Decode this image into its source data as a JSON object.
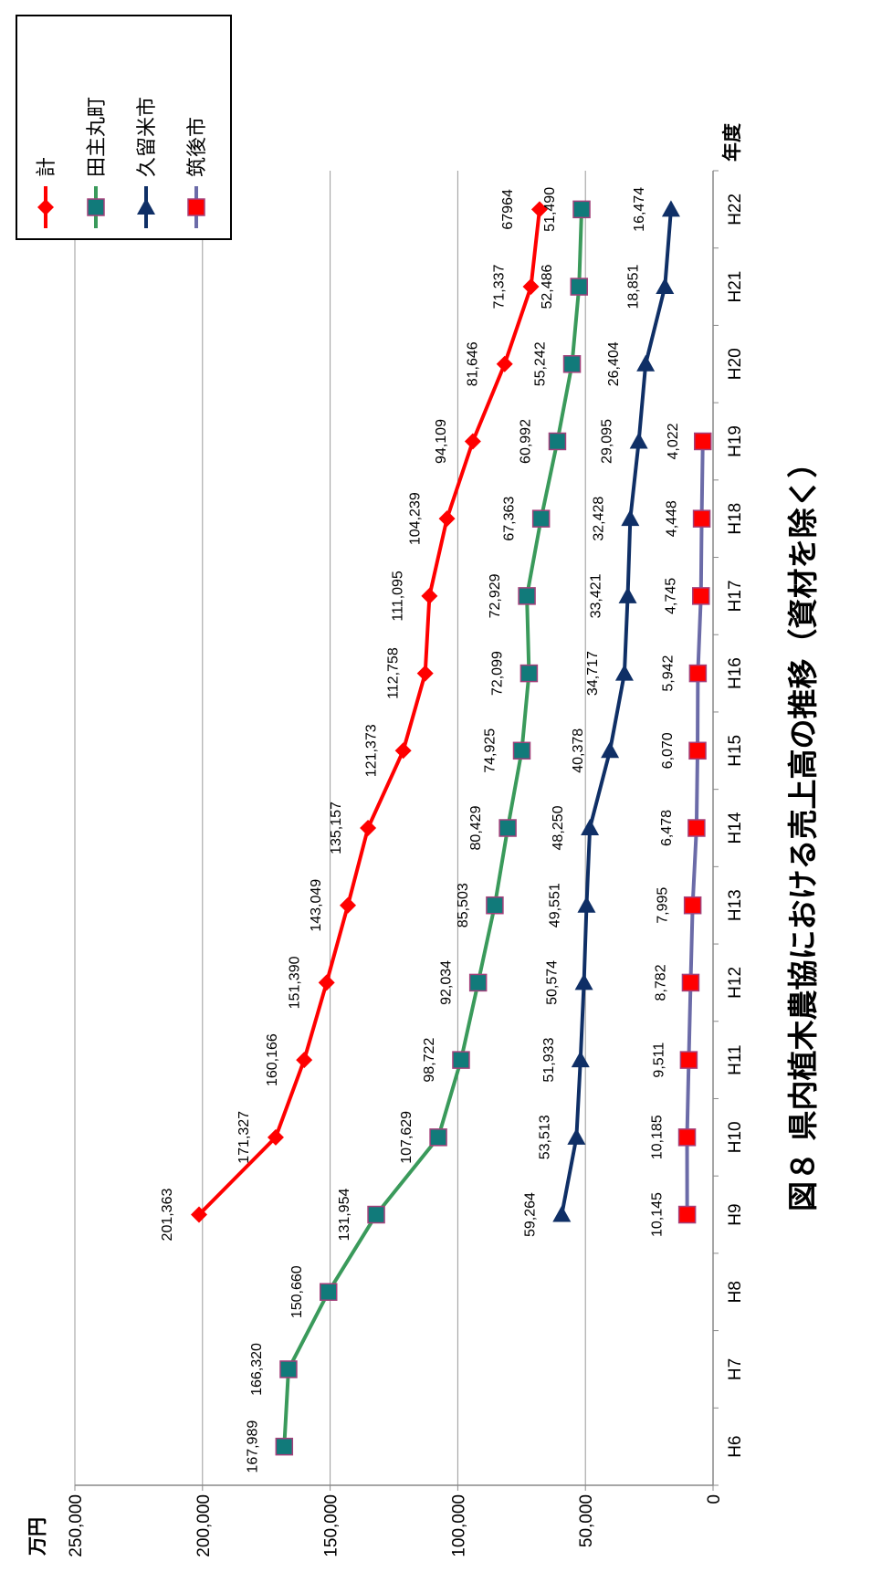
{
  "chart_data": {
    "type": "line",
    "title": "図８ 県内植木農協における売上高の推移（資材を除く）",
    "ylabel": "万円",
    "xlabel": "年度",
    "ylim": [
      0,
      250000
    ],
    "yticks": [
      "0",
      "50,000",
      "100,000",
      "150,000",
      "200,000",
      "250,000"
    ],
    "categories": [
      "H6",
      "H7",
      "H8",
      "H9",
      "H10",
      "H11",
      "H12",
      "H13",
      "H14",
      "H15",
      "H16",
      "H17",
      "H18",
      "H19",
      "H20",
      "H21",
      "H22"
    ],
    "grid": true,
    "legend_position": "top-right",
    "series": [
      {
        "name": "計",
        "color": "#ff0000",
        "marker": "diamond",
        "values": [
          null,
          null,
          null,
          201363,
          171327,
          160166,
          151390,
          143049,
          135157,
          121373,
          112758,
          111095,
          104239,
          94109,
          81646,
          71337,
          67964
        ],
        "labels": [
          null,
          null,
          null,
          "201,363",
          "171,327",
          "160,166",
          "151,390",
          "143,049",
          "135,157",
          "121,373",
          "112,758",
          "111,095",
          "104,239",
          "94,109",
          "81,646",
          "71,337",
          "67964"
        ]
      },
      {
        "name": "田主丸町",
        "color": "#3a9a5b",
        "marker": "square",
        "marker_color": "#117a7a",
        "values": [
          167989,
          166320,
          150660,
          131954,
          107629,
          98722,
          92034,
          85503,
          80429,
          74925,
          72099,
          72929,
          67363,
          60992,
          55242,
          52486,
          51490
        ],
        "labels": [
          "167,989",
          "166,320",
          "150,660",
          "131,954",
          "107,629",
          "98,722",
          "92,034",
          "85,503",
          "80,429",
          "74,925",
          "72,099",
          "72,929",
          "67,363",
          "60,992",
          "55,242",
          "52,486",
          "51,490"
        ]
      },
      {
        "name": "久留米市",
        "color": "#0f2f66",
        "marker": "triangle",
        "values": [
          null,
          null,
          null,
          59264,
          53513,
          51933,
          50574,
          49551,
          48250,
          40378,
          34717,
          33421,
          32428,
          29095,
          26404,
          18851,
          16474
        ],
        "labels": [
          null,
          null,
          null,
          "59,264",
          "53,513",
          "51,933",
          "50,574",
          "49,551",
          "48,250",
          "40,378",
          "34,717",
          "33,421",
          "32,428",
          "29,095",
          "26,404",
          "18,851",
          "16,474"
        ]
      },
      {
        "name": "筑後市",
        "color": "#6b6ba8",
        "marker": "square",
        "marker_color": "#ff0000",
        "values": [
          null,
          null,
          null,
          10145,
          10185,
          9511,
          8782,
          7995,
          6478,
          6070,
          5942,
          4745,
          4448,
          4022,
          null,
          null,
          null
        ],
        "labels": [
          null,
          null,
          null,
          "10,145",
          "10,185",
          "9,511",
          "8,782",
          "7,995",
          "6,478",
          "6,070",
          "5,942",
          "4,745",
          "4,448",
          "4,022",
          null,
          null,
          null
        ]
      }
    ]
  }
}
